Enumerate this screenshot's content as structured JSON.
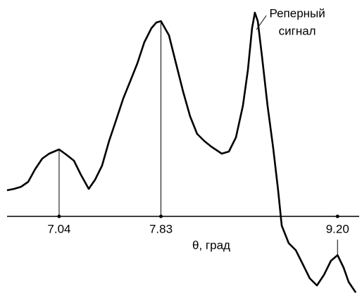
{
  "chart_data": {
    "type": "line",
    "xlabel": "θ, град",
    "annotation": [
      "Реперный",
      "сигнал"
    ],
    "annotation_x": 8.56,
    "x": [
      6.636,
      6.69,
      6.745,
      6.8,
      6.854,
      6.909,
      6.963,
      7.04,
      7.1,
      7.155,
      7.209,
      7.27,
      7.319,
      7.373,
      7.428,
      7.483,
      7.537,
      7.592,
      7.647,
      7.701,
      7.756,
      7.794,
      7.83,
      7.892,
      7.947,
      8.002,
      8.056,
      8.111,
      8.166,
      8.22,
      8.302,
      8.357,
      8.412,
      8.466,
      8.504,
      8.537,
      8.559,
      8.581,
      8.614,
      8.657,
      8.701,
      8.739,
      8.767,
      8.821,
      8.876,
      8.931,
      8.985,
      9.04,
      9.095,
      9.149,
      9.2,
      9.248,
      9.286,
      9.341
    ],
    "series": [
      {
        "color": "#000000",
        "values": [
          0.37,
          0.39,
          0.42,
          0.49,
          0.67,
          0.82,
          0.89,
          0.95,
          0.87,
          0.79,
          0.59,
          0.39,
          0.52,
          0.72,
          1.07,
          1.37,
          1.67,
          1.92,
          2.17,
          2.47,
          2.67,
          2.75,
          2.77,
          2.57,
          2.17,
          1.77,
          1.42,
          1.17,
          1.07,
          0.99,
          0.89,
          0.92,
          1.12,
          1.57,
          2.07,
          2.67,
          2.89,
          2.77,
          2.27,
          1.57,
          0.97,
          0.37,
          -0.13,
          -0.38,
          -0.48,
          -0.68,
          -0.88,
          -0.98,
          -0.83,
          -0.63,
          -0.55,
          -0.73,
          -0.93,
          -1.08
        ]
      }
    ],
    "xlim": [
      6.636,
      9.368
    ],
    "ylim": [
      -1.1,
      2.95
    ],
    "xticks": [
      7.04,
      7.83,
      {
        "value": 9.2,
        "label": "9.20"
      }
    ]
  }
}
